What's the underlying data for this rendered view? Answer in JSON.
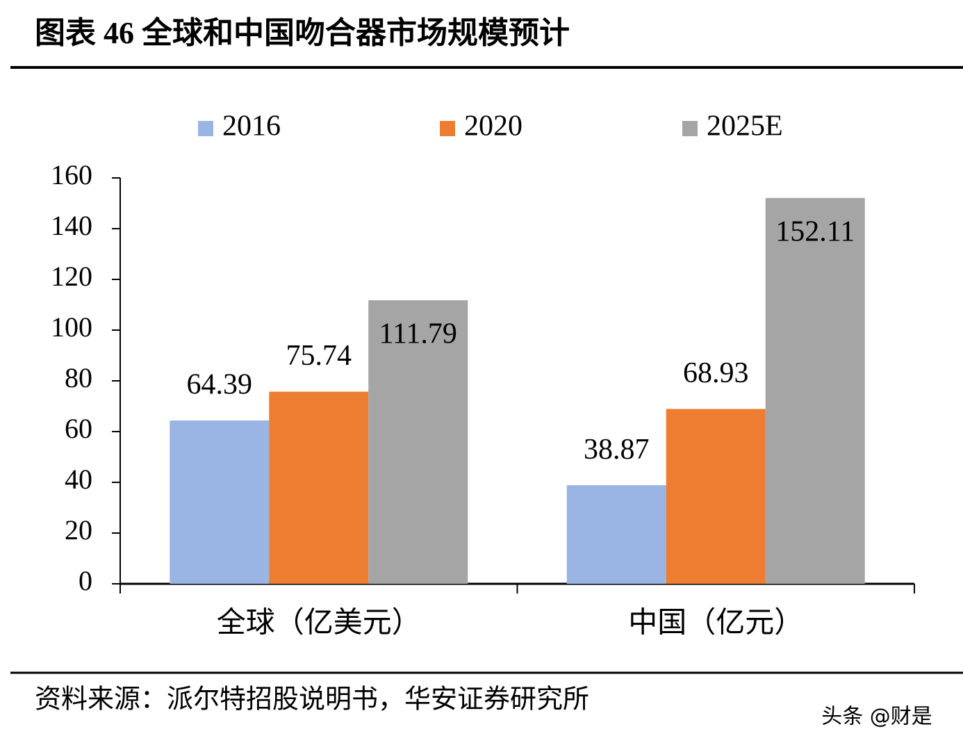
{
  "title": "图表 46 全球和中国吻合器市场规模预计",
  "chart_data": {
    "type": "bar",
    "categories": [
      "全球（亿美元）",
      "中国（亿元）"
    ],
    "series": [
      {
        "name": "2016",
        "color": "#9ab5e3",
        "values": [
          64.39,
          38.87
        ]
      },
      {
        "name": "2020",
        "color": "#ed7d31",
        "values": [
          75.74,
          68.93
        ]
      },
      {
        "name": "2025E",
        "color": "#a5a5a5",
        "values": [
          111.79,
          152.11
        ]
      }
    ],
    "ylim": [
      0,
      160
    ],
    "yticks": [
      0,
      20,
      40,
      60,
      80,
      100,
      120,
      140,
      160
    ],
    "grid": false,
    "legend": "top"
  },
  "source": "资料来源：派尔特招股说明书，华安证券研究所",
  "watermark": "头条 @财是"
}
